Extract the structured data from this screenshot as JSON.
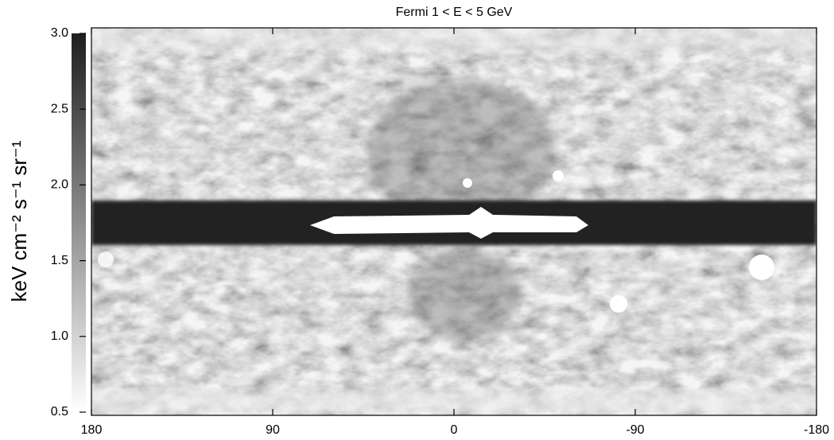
{
  "chart_data": {
    "type": "heatmap",
    "title": "Fermi 1 < E < 5 GeV",
    "y_label": "keV cm⁻² s⁻¹ sr⁻¹",
    "xlim": [
      180,
      -180
    ],
    "xticks": [
      180,
      90,
      0,
      -90,
      -180
    ],
    "clim": [
      0.5,
      3.0
    ],
    "cticks": [
      {
        "value": 0.5,
        "label": "0.5"
      },
      {
        "value": 1.0,
        "label": "1.0"
      },
      {
        "value": 1.5,
        "label": "1.5"
      },
      {
        "value": 2.0,
        "label": "2.0"
      },
      {
        "value": 2.5,
        "label": "2.5"
      },
      {
        "value": 3.0,
        "label": "3.0"
      }
    ],
    "colors": [
      "#ffffff",
      "#1e1e1e"
    ]
  }
}
